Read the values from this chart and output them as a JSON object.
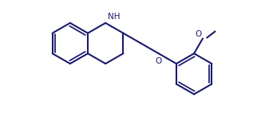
{
  "bg_color": "#ffffff",
  "line_color": "#1a1a6e",
  "line_width": 1.5,
  "figsize": [
    3.27,
    1.46
  ],
  "dpi": 100,
  "nh_label": "NH",
  "o_label1": "O",
  "methoxy_o_label": "O"
}
